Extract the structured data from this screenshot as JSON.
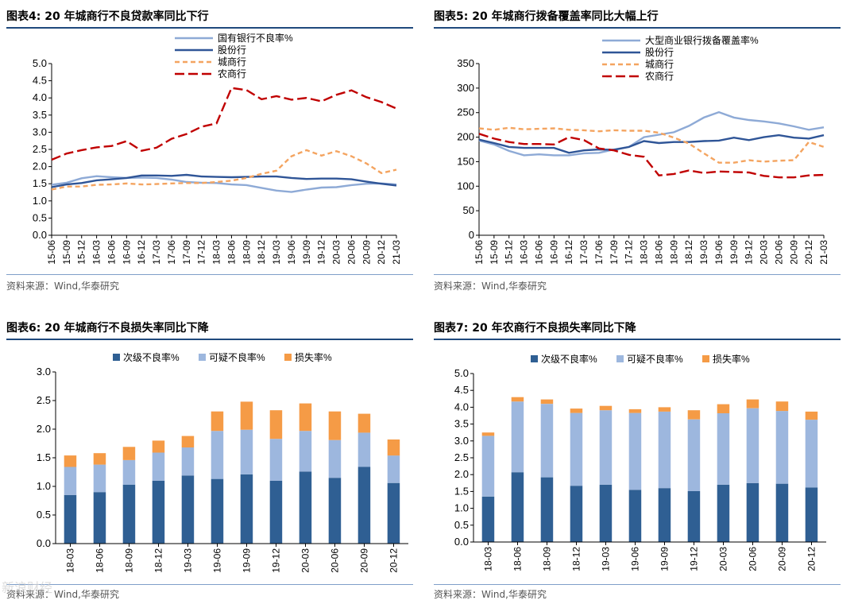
{
  "page": {
    "watermark": "新浪财经",
    "sources": [
      "资料来源：Wind,华泰研究",
      "资料来源：Wind,华泰研究",
      "资料来源：Wind,华泰研究",
      "资料来源：Wind,华泰研究"
    ]
  },
  "chart_data": [
    {
      "id": "fig4",
      "type": "line",
      "title": "图表4:  20 年城商行不良贷款率同比下行",
      "xlabel": "",
      "ylabel": "",
      "ylim": [
        0,
        5.0
      ],
      "yticks": [
        0.0,
        0.5,
        1.0,
        1.5,
        2.0,
        2.5,
        3.0,
        3.5,
        4.0,
        4.5,
        5.0
      ],
      "categories": [
        "15-06",
        "15-09",
        "15-12",
        "16-03",
        "16-06",
        "16-09",
        "16-12",
        "17-03",
        "17-06",
        "17-09",
        "17-12",
        "18-03",
        "18-06",
        "18-09",
        "18-12",
        "19-03",
        "19-06",
        "19-09",
        "19-12",
        "20-03",
        "20-06",
        "20-09",
        "20-12",
        "21-03"
      ],
      "legend": "top-right",
      "series": [
        {
          "name": "国有银行不良率%",
          "color": "#8eaad6",
          "dash": "solid",
          "values": [
            1.47,
            1.53,
            1.66,
            1.72,
            1.69,
            1.67,
            1.68,
            1.67,
            1.62,
            1.55,
            1.53,
            1.52,
            1.48,
            1.46,
            1.38,
            1.3,
            1.26,
            1.33,
            1.39,
            1.4,
            1.46,
            1.5,
            1.51,
            1.48
          ]
        },
        {
          "name": "股份行",
          "color": "#2f5597",
          "dash": "solid",
          "values": [
            1.4,
            1.48,
            1.52,
            1.6,
            1.63,
            1.67,
            1.74,
            1.74,
            1.73,
            1.76,
            1.71,
            1.7,
            1.69,
            1.7,
            1.71,
            1.71,
            1.67,
            1.64,
            1.65,
            1.65,
            1.63,
            1.56,
            1.5,
            1.45
          ]
        },
        {
          "name": "城商行",
          "color": "#f4a460",
          "dash": "6,4",
          "values": [
            1.33,
            1.42,
            1.42,
            1.47,
            1.48,
            1.51,
            1.48,
            1.49,
            1.51,
            1.52,
            1.52,
            1.55,
            1.59,
            1.67,
            1.79,
            1.88,
            2.3,
            2.48,
            2.32,
            2.45,
            2.3,
            2.09,
            1.81,
            1.91
          ]
        },
        {
          "name": "农商行",
          "color": "#c00000",
          "dash": "12,5",
          "values": [
            2.2,
            2.38,
            2.48,
            2.56,
            2.6,
            2.74,
            2.46,
            2.55,
            2.81,
            2.95,
            3.16,
            3.26,
            4.29,
            4.23,
            3.96,
            4.05,
            3.95,
            4.0,
            3.9,
            4.09,
            4.22,
            4.02,
            3.88,
            3.69
          ]
        }
      ]
    },
    {
      "id": "fig5",
      "type": "line",
      "title": "图表5:  20 年城商行拨备覆盖率同比大幅上行",
      "xlabel": "",
      "ylabel": "",
      "ylim": [
        0,
        350
      ],
      "yticks": [
        0,
        50,
        100,
        150,
        200,
        250,
        300,
        350
      ],
      "categories": [
        "15-06",
        "15-09",
        "15-12",
        "16-03",
        "16-06",
        "16-09",
        "16-12",
        "17-03",
        "17-06",
        "17-09",
        "17-12",
        "18-03",
        "18-06",
        "18-09",
        "18-12",
        "19-03",
        "19-06",
        "19-09",
        "19-12",
        "20-03",
        "20-06",
        "20-09",
        "20-12",
        "21-03"
      ],
      "legend": "top-right",
      "series": [
        {
          "name": "大型商业银行拨备覆盖率%",
          "color": "#8eaad6",
          "dash": "solid",
          "values": [
            193,
            185,
            172,
            163,
            165,
            163,
            163,
            167,
            168,
            175,
            180,
            200,
            205,
            210,
            223,
            240,
            251,
            240,
            235,
            232,
            228,
            222,
            215,
            220
          ]
        },
        {
          "name": "股份行",
          "color": "#2f5597",
          "dash": "solid",
          "values": [
            195,
            188,
            180,
            178,
            178,
            178,
            168,
            173,
            175,
            174,
            180,
            192,
            188,
            190,
            190,
            192,
            193,
            199,
            194,
            200,
            204,
            199,
            197,
            204
          ]
        },
        {
          "name": "城商行",
          "color": "#f4a460",
          "dash": "6,4",
          "values": [
            218,
            215,
            219,
            216,
            217,
            218,
            215,
            214,
            212,
            214,
            213,
            213,
            209,
            199,
            187,
            167,
            148,
            148,
            153,
            150,
            152,
            153,
            190,
            180
          ]
        },
        {
          "name": "农商行",
          "color": "#c00000",
          "dash": "12,5",
          "values": [
            207,
            197,
            190,
            186,
            186,
            185,
            200,
            194,
            177,
            173,
            164,
            160,
            122,
            125,
            132,
            127,
            130,
            129,
            128,
            121,
            118,
            118,
            122,
            123
          ]
        }
      ]
    },
    {
      "id": "fig6",
      "type": "bar",
      "stacked": true,
      "title": "图表6:  20 年城商行不良损失率同比下降",
      "xlabel": "",
      "ylabel": "",
      "ylim": [
        0,
        3.0
      ],
      "yticks": [
        0.0,
        0.5,
        1.0,
        1.5,
        2.0,
        2.5,
        3.0
      ],
      "categories": [
        "18-03",
        "18-06",
        "18-09",
        "18-12",
        "19-03",
        "19-06",
        "19-09",
        "19-12",
        "20-03",
        "20-06",
        "20-09",
        "20-12"
      ],
      "legend": "top-center",
      "series": [
        {
          "name": "次级不良率%",
          "color": "#2f5f93",
          "values": [
            0.85,
            0.9,
            1.03,
            1.1,
            1.19,
            1.13,
            1.21,
            1.1,
            1.26,
            1.15,
            1.34,
            1.06
          ]
        },
        {
          "name": "可疑不良率%",
          "color": "#9db7de",
          "values": [
            0.49,
            0.48,
            0.43,
            0.49,
            0.49,
            0.84,
            0.78,
            0.73,
            0.71,
            0.66,
            0.6,
            0.48
          ]
        },
        {
          "name": "损失率%",
          "color": "#f59b46",
          "values": [
            0.2,
            0.2,
            0.23,
            0.21,
            0.2,
            0.34,
            0.49,
            0.5,
            0.48,
            0.5,
            0.33,
            0.28
          ]
        }
      ]
    },
    {
      "id": "fig7",
      "type": "bar",
      "stacked": true,
      "title": "图表7:  20 年农商行不良损失率同比下降",
      "xlabel": "",
      "ylabel": "",
      "ylim": [
        0,
        5.0
      ],
      "yticks": [
        0.0,
        0.5,
        1.0,
        1.5,
        2.0,
        2.5,
        3.0,
        3.5,
        4.0,
        4.5,
        5.0
      ],
      "categories": [
        "18-03",
        "18-06",
        "18-09",
        "18-12",
        "19-03",
        "19-06",
        "19-09",
        "19-12",
        "20-03",
        "20-06",
        "20-09",
        "20-12"
      ],
      "legend": "top-center",
      "series": [
        {
          "name": "次级不良率%",
          "color": "#2f5f93",
          "values": [
            1.35,
            2.07,
            1.92,
            1.67,
            1.7,
            1.55,
            1.6,
            1.51,
            1.7,
            1.75,
            1.73,
            1.62
          ]
        },
        {
          "name": "可疑不良率%",
          "color": "#9db7de",
          "values": [
            1.8,
            2.1,
            2.18,
            2.16,
            2.21,
            2.28,
            2.27,
            2.13,
            2.12,
            2.22,
            2.16,
            2.01
          ]
        },
        {
          "name": "损失率%",
          "color": "#f59b46",
          "values": [
            0.1,
            0.13,
            0.13,
            0.13,
            0.13,
            0.11,
            0.13,
            0.27,
            0.27,
            0.26,
            0.28,
            0.24
          ]
        }
      ]
    }
  ]
}
